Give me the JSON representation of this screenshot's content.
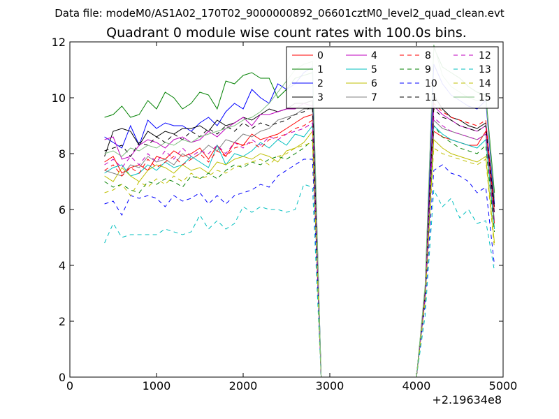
{
  "header": {
    "data_file": "Data file: modeM0/AS1A02_170T02_9000000892_06601cztM0_level2_quad_clean.evt"
  },
  "chart_data": {
    "type": "line",
    "title": "Quadrant 0 module wise count rates with 100.0s bins.",
    "xlabel": "",
    "ylabel": "",
    "xlim": [
      0,
      5000
    ],
    "ylim": [
      0,
      12
    ],
    "x_offset_label": "+2.19634e8",
    "xticks": [
      0,
      1000,
      2000,
      3000,
      4000,
      5000
    ],
    "xtick_labels": [
      "0",
      "1000",
      "2000",
      "3000",
      "4000",
      "5000"
    ],
    "yticks": [
      0,
      2,
      4,
      6,
      8,
      10,
      12
    ],
    "ytick_labels": [
      "0",
      "2",
      "4",
      "6",
      "8",
      "10",
      "12"
    ],
    "grid": false,
    "legend_position": "top-right",
    "legend_columns": 4,
    "x": [
      400,
      500,
      600,
      700,
      800,
      900,
      1000,
      1100,
      1200,
      1300,
      1400,
      1500,
      1600,
      1700,
      1800,
      1900,
      2000,
      2100,
      2200,
      2300,
      2400,
      2500,
      2600,
      2700,
      2800,
      2900,
      3000,
      3100,
      3200,
      3300,
      3400,
      3500,
      3600,
      3700,
      3800,
      3900,
      4000,
      4100,
      4200,
      4300,
      4400,
      4500,
      4600,
      4700,
      4800,
      4900
    ],
    "series": [
      {
        "name": "0",
        "color": "#ff0000",
        "dash": "solid",
        "values": [
          7.7,
          7.9,
          7.3,
          7.5,
          7.6,
          7.4,
          7.9,
          7.8,
          8.1,
          7.9,
          8.0,
          8.2,
          7.8,
          8.3,
          7.9,
          8.4,
          8.3,
          8.7,
          8.5,
          8.6,
          8.7,
          8.9,
          9.1,
          9.3,
          9.4,
          0,
          0,
          0,
          0,
          0,
          0,
          0,
          0,
          0,
          0,
          0,
          0,
          3.0,
          8.8,
          8.6,
          8.5,
          8.4,
          8.3,
          8.3,
          8.8,
          5.5
        ]
      },
      {
        "name": "1",
        "color": "#008000",
        "dash": "solid",
        "values": [
          9.3,
          9.4,
          9.7,
          9.3,
          9.4,
          9.9,
          9.6,
          10.2,
          10.0,
          9.6,
          9.8,
          10.2,
          10.1,
          9.6,
          10.6,
          10.5,
          10.8,
          10.9,
          10.7,
          10.7,
          10.0,
          10.3,
          10.7,
          10.8,
          10.9,
          0,
          0,
          0,
          0,
          0,
          0,
          0,
          0,
          0,
          0,
          0,
          0,
          3.2,
          11.8,
          11.1,
          10.9,
          10.7,
          10.4,
          10.2,
          10.1,
          6.6
        ]
      },
      {
        "name": "2",
        "color": "#0000ff",
        "dash": "solid",
        "values": [
          8.6,
          8.4,
          8.2,
          9.0,
          8.3,
          9.2,
          8.9,
          9.1,
          9.0,
          9.0,
          8.8,
          9.1,
          9.3,
          9.0,
          9.5,
          9.8,
          9.6,
          10.3,
          10.0,
          9.8,
          10.5,
          10.3,
          10.5,
          10.9,
          11.1,
          0,
          0,
          0,
          0,
          0,
          0,
          0,
          0,
          0,
          0,
          0,
          0,
          3.1,
          11.2,
          10.5,
          10.1,
          9.9,
          9.7,
          9.6,
          9.9,
          6.2
        ]
      },
      {
        "name": "3",
        "color": "#000000",
        "dash": "solid",
        "values": [
          7.9,
          8.8,
          8.9,
          8.8,
          8.3,
          8.8,
          8.6,
          8.8,
          8.7,
          8.9,
          8.9,
          9.0,
          8.8,
          9.2,
          9.0,
          9.1,
          9.3,
          9.2,
          9.4,
          9.6,
          9.5,
          9.6,
          9.8,
          9.8,
          9.9,
          0,
          0,
          0,
          0,
          0,
          0,
          0,
          0,
          0,
          0,
          0,
          0,
          3.0,
          10.1,
          9.6,
          9.3,
          9.2,
          9.0,
          8.9,
          9.1,
          6.1
        ]
      },
      {
        "name": "4",
        "color": "#bf00bf",
        "dash": "solid",
        "values": [
          8.5,
          8.6,
          7.8,
          7.9,
          8.3,
          8.5,
          8.4,
          8.2,
          8.5,
          8.6,
          8.4,
          8.5,
          8.8,
          8.6,
          8.9,
          9.1,
          9.3,
          9.0,
          9.4,
          9.4,
          9.5,
          9.6,
          9.6,
          9.8,
          9.7,
          0,
          0,
          0,
          0,
          0,
          0,
          0,
          0,
          0,
          0,
          0,
          0,
          3.1,
          9.7,
          9.4,
          9.2,
          9.0,
          8.9,
          8.8,
          9.0,
          5.9
        ]
      },
      {
        "name": "5",
        "color": "#00bfbf",
        "dash": "solid",
        "values": [
          7.3,
          7.5,
          7.6,
          7.2,
          7.3,
          7.6,
          7.4,
          7.7,
          7.5,
          7.6,
          7.9,
          7.7,
          7.5,
          8.3,
          7.6,
          8.0,
          7.9,
          8.1,
          8.4,
          8.2,
          8.5,
          8.3,
          8.7,
          8.6,
          9.0,
          0,
          0,
          0,
          0,
          0,
          0,
          0,
          0,
          0,
          0,
          0,
          0,
          2.9,
          9.0,
          8.7,
          8.5,
          8.4,
          8.3,
          8.2,
          8.5,
          5.3
        ]
      },
      {
        "name": "6",
        "color": "#bfbf00",
        "dash": "solid",
        "values": [
          7.2,
          7.0,
          7.5,
          7.2,
          7.0,
          7.4,
          7.6,
          7.5,
          7.3,
          7.6,
          7.4,
          7.5,
          7.3,
          7.7,
          7.6,
          7.8,
          7.9,
          7.8,
          8.0,
          7.9,
          7.7,
          8.1,
          8.2,
          8.4,
          8.8,
          0,
          0,
          0,
          0,
          0,
          0,
          0,
          0,
          0,
          0,
          0,
          0,
          2.8,
          8.5,
          8.2,
          8.0,
          7.9,
          7.8,
          7.7,
          7.9,
          4.8
        ]
      },
      {
        "name": "7",
        "color": "#808080",
        "dash": "solid",
        "values": [
          7.4,
          7.3,
          7.2,
          7.6,
          7.5,
          7.9,
          7.7,
          7.8,
          7.6,
          8.0,
          7.8,
          8.0,
          8.3,
          8.1,
          8.5,
          8.4,
          8.7,
          8.6,
          8.8,
          8.9,
          9.2,
          9.3,
          9.4,
          9.6,
          9.6,
          0,
          0,
          0,
          0,
          0,
          0,
          0,
          0,
          0,
          0,
          0,
          0,
          3.0,
          9.2,
          8.9,
          8.8,
          8.7,
          8.6,
          8.5,
          8.7,
          5.6
        ]
      },
      {
        "name": "8",
        "color": "#ff0000",
        "dash": "dashed",
        "values": [
          7.4,
          7.6,
          7.2,
          7.5,
          7.3,
          7.8,
          7.5,
          7.7,
          7.9,
          7.6,
          7.8,
          8.0,
          7.7,
          8.1,
          7.9,
          8.2,
          8.3,
          8.4,
          8.2,
          8.5,
          8.6,
          8.7,
          8.9,
          9.0,
          9.2,
          0,
          0,
          0,
          0,
          0,
          0,
          0,
          0,
          0,
          0,
          0,
          0,
          2.9,
          9.8,
          9.5,
          9.3,
          9.2,
          9.1,
          9.0,
          9.2,
          5.9
        ]
      },
      {
        "name": "9",
        "color": "#008000",
        "dash": "dashed",
        "values": [
          7.0,
          6.8,
          6.9,
          6.7,
          6.6,
          7.0,
          6.9,
          7.1,
          7.0,
          6.8,
          7.2,
          7.1,
          7.3,
          7.1,
          7.4,
          7.6,
          7.5,
          7.7,
          7.6,
          7.8,
          7.9,
          7.8,
          8.0,
          8.2,
          8.5,
          0,
          0,
          0,
          0,
          0,
          0,
          0,
          0,
          0,
          0,
          0,
          0,
          2.8,
          9.0,
          8.6,
          8.4,
          8.2,
          8.1,
          8.0,
          8.3,
          5.2
        ]
      },
      {
        "name": "10",
        "color": "#0000ff",
        "dash": "dashed",
        "values": [
          6.2,
          6.3,
          5.8,
          6.5,
          6.4,
          6.5,
          6.4,
          6.1,
          6.5,
          6.3,
          6.4,
          6.6,
          6.2,
          6.5,
          6.2,
          6.5,
          6.6,
          6.7,
          6.9,
          6.8,
          7.2,
          7.4,
          7.6,
          7.8,
          7.8,
          0,
          0,
          0,
          0,
          0,
          0,
          0,
          0,
          0,
          0,
          0,
          0,
          2.6,
          7.4,
          7.6,
          7.3,
          7.2,
          7.0,
          6.6,
          6.8,
          4.0
        ]
      },
      {
        "name": "11",
        "color": "#000000",
        "dash": "dashed",
        "values": [
          8.1,
          8.2,
          8.3,
          7.9,
          8.4,
          8.3,
          8.6,
          8.4,
          8.7,
          8.5,
          8.8,
          8.6,
          8.9,
          8.7,
          9.0,
          8.8,
          9.1,
          8.9,
          9.1,
          9.0,
          9.1,
          9.2,
          9.4,
          9.5,
          9.7,
          0,
          0,
          0,
          0,
          0,
          0,
          0,
          0,
          0,
          0,
          0,
          0,
          3.0,
          9.6,
          9.3,
          9.2,
          9.0,
          8.9,
          8.8,
          9.0,
          5.8
        ]
      },
      {
        "name": "12",
        "color": "#bf00bf",
        "dash": "dashed",
        "values": [
          7.6,
          7.8,
          7.5,
          7.9,
          7.6,
          8.0,
          7.7,
          8.1,
          7.8,
          8.2,
          7.9,
          8.1,
          8.0,
          8.3,
          8.0,
          8.4,
          8.2,
          8.5,
          8.3,
          8.6,
          8.5,
          8.7,
          8.8,
          8.9,
          9.1,
          0,
          0,
          0,
          0,
          0,
          0,
          0,
          0,
          0,
          0,
          0,
          0,
          2.9,
          9.3,
          9.0,
          8.8,
          8.7,
          8.6,
          8.5,
          8.7,
          5.5
        ]
      },
      {
        "name": "13",
        "color": "#00bfbf",
        "dash": "dashed",
        "values": [
          4.8,
          5.5,
          5.0,
          5.1,
          5.1,
          5.1,
          5.1,
          5.3,
          5.2,
          5.1,
          5.2,
          5.8,
          5.3,
          5.6,
          5.3,
          5.5,
          6.1,
          5.9,
          6.1,
          6.0,
          6.0,
          5.9,
          6.0,
          6.9,
          6.8,
          0,
          0,
          0,
          0,
          0,
          0,
          0,
          0,
          0,
          0,
          0,
          0,
          2.2,
          6.7,
          6.1,
          6.4,
          5.7,
          6.0,
          5.5,
          5.6,
          3.8
        ]
      },
      {
        "name": "14",
        "color": "#bfbf00",
        "dash": "dashed",
        "values": [
          6.6,
          6.7,
          6.9,
          6.5,
          7.0,
          6.8,
          7.1,
          6.9,
          7.2,
          7.0,
          7.3,
          7.1,
          7.2,
          7.4,
          7.3,
          7.5,
          7.6,
          7.7,
          7.8,
          7.6,
          7.9,
          8.0,
          8.2,
          8.3,
          8.4,
          0,
          0,
          0,
          0,
          0,
          0,
          0,
          0,
          0,
          0,
          0,
          0,
          2.7,
          8.2,
          8.0,
          7.9,
          7.8,
          7.7,
          7.6,
          7.8,
          4.6
        ]
      },
      {
        "name": "15",
        "color": "#7fbf7f",
        "dash": "solid",
        "values": [
          8.0,
          8.1,
          7.9,
          8.2,
          8.1,
          8.3,
          8.2,
          8.4,
          8.3,
          8.5,
          8.4,
          8.6,
          8.7,
          8.8,
          8.9,
          9.0,
          9.2,
          9.3,
          9.5,
          9.8,
          10.2,
          10.6,
          11.0,
          11.2,
          11.3,
          0,
          0,
          0,
          0,
          0,
          0,
          0,
          0,
          0,
          0,
          0,
          0,
          3.3,
          11.9,
          10.8,
          10.4,
          10.2,
          10.0,
          9.9,
          10.0,
          6.4
        ]
      }
    ]
  }
}
